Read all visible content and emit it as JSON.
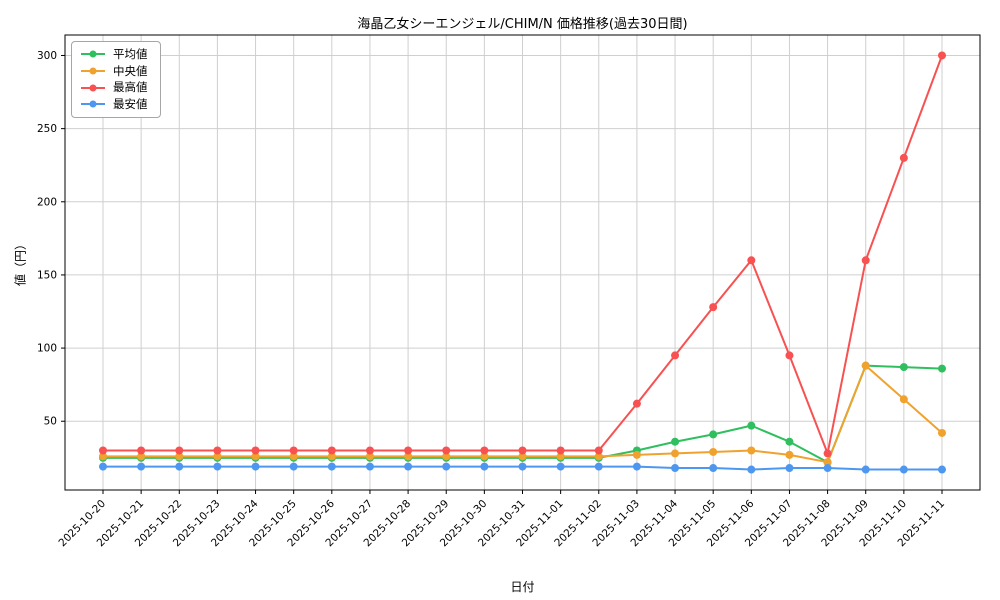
{
  "chart_data": {
    "type": "line",
    "title": "海晶乙女シーエンジェル/CHIM/N 価格推移(過去30日間)",
    "xlabel": "日付",
    "ylabel": "値（円）",
    "categories": [
      "2025-10-20",
      "2025-10-21",
      "2025-10-22",
      "2025-10-23",
      "2025-10-24",
      "2025-10-25",
      "2025-10-26",
      "2025-10-27",
      "2025-10-28",
      "2025-10-29",
      "2025-10-30",
      "2025-10-31",
      "2025-11-01",
      "2025-11-02",
      "2025-11-03",
      "2025-11-04",
      "2025-11-05",
      "2025-11-06",
      "2025-11-07",
      "2025-11-08",
      "2025-11-09",
      "2025-11-10",
      "2025-11-11"
    ],
    "series": [
      {
        "name": "平均値",
        "color": "#2fbf5f",
        "values": [
          25,
          25,
          25,
          25,
          25,
          25,
          25,
          25,
          25,
          25,
          25,
          25,
          25,
          25,
          30,
          36,
          41,
          47,
          36,
          22,
          88,
          87,
          86
        ]
      },
      {
        "name": "中央値",
        "color": "#f0a22e",
        "values": [
          26,
          26,
          26,
          26,
          26,
          26,
          26,
          26,
          26,
          26,
          26,
          26,
          26,
          26,
          27,
          28,
          29,
          30,
          27,
          22,
          88,
          65,
          42
        ]
      },
      {
        "name": "最高値",
        "color": "#f85151",
        "values": [
          30,
          30,
          30,
          30,
          30,
          30,
          30,
          30,
          30,
          30,
          30,
          30,
          30,
          30,
          62,
          95,
          128,
          160,
          95,
          28,
          160,
          230,
          300
        ]
      },
      {
        "name": "最安値",
        "color": "#4e97f0",
        "values": [
          19,
          19,
          19,
          19,
          19,
          19,
          19,
          19,
          19,
          19,
          19,
          19,
          19,
          19,
          19,
          18,
          18,
          17,
          18,
          18,
          17,
          17,
          17
        ]
      }
    ],
    "ylim": [
      3,
      314
    ],
    "yticks": [
      50,
      100,
      150,
      200,
      250,
      300
    ],
    "grid": true,
    "legend_position": "upper left"
  }
}
